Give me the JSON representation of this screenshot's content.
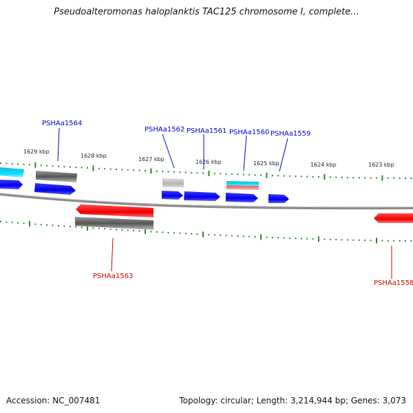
{
  "title": "Pseudoalteromonas haloplanktis TAC125 chromosome I, complete...",
  "scale_labels": [
    "1629 kbp",
    "1628 kbp",
    "1627 kbp",
    "1626 kbp",
    "1625 kbp",
    "1624 kbp",
    "1623 kbp"
  ],
  "genes": [
    {
      "label": "PSHAa1564",
      "strand": "+",
      "color": "#0000cc"
    },
    {
      "label": "PSHAa1562",
      "strand": "+",
      "color": "#0000cc"
    },
    {
      "label": "PSHAa1561",
      "strand": "+",
      "color": "#0000cc"
    },
    {
      "label": "PSHAa1560",
      "strand": "+",
      "color": "#0000cc"
    },
    {
      "label": "PSHAa1559",
      "strand": "+",
      "color": "#0000cc"
    },
    {
      "label": "PSHAa1563",
      "strand": "-",
      "color": "#cc0000"
    },
    {
      "label": "PSHAa1558",
      "strand": "-",
      "color": "#cc0000"
    }
  ],
  "footer": {
    "accession": "Accession: NC_007481",
    "summary": "Topology: circular; Length: 3,214,944 bp; Genes: 3,073"
  },
  "colors": {
    "forward_gene": "#0000ff",
    "reverse_gene": "#ff0000",
    "tick": "#228b22",
    "backbone": "#888888"
  }
}
